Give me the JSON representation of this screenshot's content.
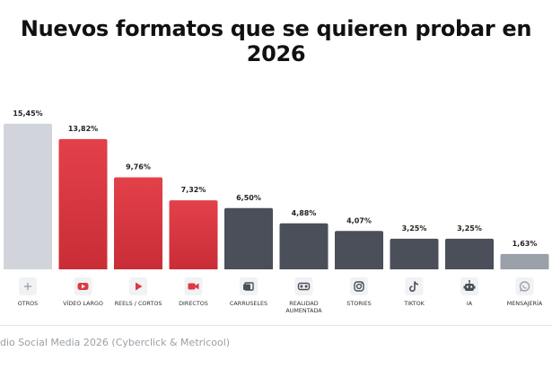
{
  "title": "Nuevos formatos que se quieren probar en 2026",
  "footer": "dio Social Media 2026 (Cyberclick & Metricool)",
  "chart_data": {
    "type": "bar",
    "categories": [
      "OTROS",
      "VÍDEO LARGO",
      "REELS / CORTOS",
      "DIRECTOS",
      "CARRUSELES",
      "REALIDAD AUMENTADA",
      "STORIES",
      "TIKTOK",
      "IA",
      "MENSAJERÍA"
    ],
    "values": [
      15.45,
      13.82,
      9.76,
      7.32,
      6.5,
      4.88,
      4.07,
      3.25,
      3.25,
      1.63
    ],
    "value_labels": [
      "15,45%",
      "13,82%",
      "9,76%",
      "7,32%",
      "6,50%",
      "4,88%",
      "4,07%",
      "3,25%",
      "3,25%",
      "1,63%"
    ],
    "ylim": [
      0,
      16
    ],
    "grid": false,
    "colors": [
      "#d1d5db",
      "#dc3a42",
      "#dc3a42",
      "#dc3a42",
      "#4a4f59",
      "#4a4f59",
      "#4a4f59",
      "#4a4f59",
      "#4a4f59",
      "#9aa0a8"
    ],
    "icons": [
      "plus-icon",
      "youtube-icon",
      "play-icon",
      "video-camera-icon",
      "carousel-icon",
      "vr-headset-icon",
      "instagram-icon",
      "tiktok-icon",
      "robot-icon",
      "whatsapp-icon"
    ],
    "icon_colors": [
      "#9ca3af",
      "#dc3a42",
      "#dc3a42",
      "#dc3a42",
      "#4a4f59",
      "#4a4f59",
      "#4a4f59",
      "#4a4f59",
      "#4a4f59",
      "#9ca3af"
    ]
  }
}
